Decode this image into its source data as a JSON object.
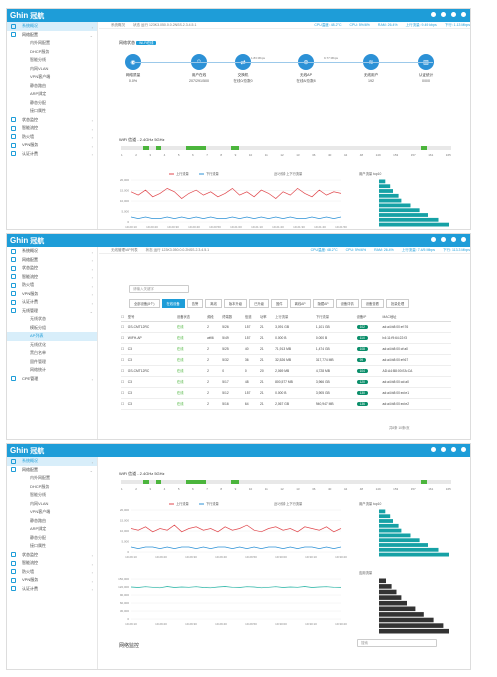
{
  "brand": {
    "logo": "Ghin",
    "logo_cn": "冠航"
  },
  "sidebar1": [
    {
      "label": "系统概况",
      "type": "top",
      "active": true
    },
    {
      "label": "网络配置",
      "type": "top",
      "icon": "network-icon",
      "open": true
    },
    {
      "label": "内外网配置",
      "type": "sub"
    },
    {
      "label": "DHCP服务",
      "type": "sub"
    },
    {
      "label": "智能分线",
      "type": "sub"
    },
    {
      "label": "内网VLAN",
      "type": "sub"
    },
    {
      "label": "VPN客户端",
      "type": "sub"
    },
    {
      "label": "静态路由",
      "type": "sub"
    },
    {
      "label": "ARP绑定",
      "type": "sub"
    },
    {
      "label": "静态分配",
      "type": "sub"
    },
    {
      "label": "接口属性",
      "type": "sub"
    },
    {
      "label": "状态监控",
      "type": "top",
      "icon": "monitor-icon"
    },
    {
      "label": "智能流控",
      "type": "top",
      "icon": "flow-icon"
    },
    {
      "label": "防火墙",
      "type": "top",
      "icon": "firewall-icon"
    },
    {
      "label": "VPN服务",
      "type": "top",
      "icon": "vpn-icon"
    },
    {
      "label": "认证计费",
      "type": "top",
      "icon": "auth-icon"
    }
  ],
  "sidebar2": [
    {
      "label": "系统概况",
      "type": "top"
    },
    {
      "label": "网络配置",
      "type": "top"
    },
    {
      "label": "状态监控",
      "type": "top"
    },
    {
      "label": "智能流控",
      "type": "top"
    },
    {
      "label": "防火墙",
      "type": "top"
    },
    {
      "label": "VPN服务",
      "type": "top"
    },
    {
      "label": "认证计费",
      "type": "top"
    },
    {
      "label": "无线管理",
      "type": "top",
      "open": true
    },
    {
      "label": "无线状态",
      "type": "sub"
    },
    {
      "label": "模板分组",
      "type": "sub"
    },
    {
      "label": "AP列表",
      "type": "sub",
      "active": true
    },
    {
      "label": "无线优化",
      "type": "sub"
    },
    {
      "label": "黑白名单",
      "type": "sub"
    },
    {
      "label": "固件管理",
      "type": "sub"
    },
    {
      "label": "网络统计",
      "type": "sub"
    },
    {
      "label": "CPE管理",
      "type": "top"
    }
  ],
  "sidebar3": [
    {
      "label": "系统概况",
      "type": "top",
      "active": true
    },
    {
      "label": "网络配置",
      "type": "top",
      "open": true
    },
    {
      "label": "内外网配置",
      "type": "sub"
    },
    {
      "label": "DHCP服务",
      "type": "sub"
    },
    {
      "label": "智能分线",
      "type": "sub"
    },
    {
      "label": "内网VLAN",
      "type": "sub"
    },
    {
      "label": "VPN客户端",
      "type": "sub"
    },
    {
      "label": "静态路由",
      "type": "sub"
    },
    {
      "label": "ARP绑定",
      "type": "sub"
    },
    {
      "label": "静态分配",
      "type": "sub"
    },
    {
      "label": "接口属性",
      "type": "sub"
    },
    {
      "label": "状态监控",
      "type": "top"
    },
    {
      "label": "智能流控",
      "type": "top"
    },
    {
      "label": "防火墙",
      "type": "top"
    },
    {
      "label": "VPN服务",
      "type": "top"
    },
    {
      "label": "认证计费",
      "type": "top"
    }
  ],
  "status1": {
    "path": "系统概况",
    "sys": "状态  运行 123K3.050.0.0.2NSS.2.3.4.5.1",
    "cpu": "CPU温度: 48.2°C",
    "cpu2": "CPU: 5%/6%",
    "mem": "RAM: 26.4%",
    "up": "上行流量: 9.49 kbps",
    "down": "下行: 1.13 Mbps"
  },
  "status2": {
    "path": "无线管理/AP列表",
    "sys": "状态  运行 123K3.050.0.0.2NSS.2.3.4.5.1",
    "cpu": "CPU温度: 48.2°C",
    "cpu2": "CPU: 5%/6%",
    "mem": "RAM: 26.4%",
    "up": "上行流量: 7.4/5 Mbps",
    "down": "下行: 113.3 Mbps"
  },
  "topo": {
    "title": "网络状态",
    "badge": "Wi-Fi在线",
    "nodes": [
      {
        "icon": "wan-icon",
        "label": "网络质量",
        "value": "0.0%"
      },
      {
        "icon": "users-icon",
        "label": "用户在线",
        "value": "207/291/500"
      },
      {
        "icon": "switch-icon",
        "label": "交换机",
        "value": "在线0/总数0"
      },
      {
        "icon": "ap-icon",
        "label": "无线AP",
        "value": "在线8/总数8"
      },
      {
        "icon": "wifi-icon",
        "label": "无线用户",
        "value": "192"
      },
      {
        "icon": "stats-icon",
        "label": "认证统计",
        "value": "0/0/0"
      }
    ],
    "speed1": "1.83 Mbps",
    "speed2": "9.77 Mbps"
  },
  "wifi": {
    "title": "WiFi 信道 - 2.4GHz  5GHz",
    "channels": [
      "1",
      "2",
      "3",
      "4",
      "5",
      "6",
      "7",
      "8",
      "9",
      "10",
      "11",
      "12",
      "13",
      "36",
      "40",
      "44",
      "48",
      "149",
      "153",
      "157",
      "161",
      "165"
    ]
  },
  "chart1": {
    "legend_up": "上行流量",
    "legend_down": "下行流量",
    "note": "近1分钟 上下行流量",
    "y_ticks": [
      "20,000",
      "15,000",
      "10,000",
      "5,000",
      "0"
    ],
    "x_ticks": [
      "19:20:10",
      "19:20:20",
      "19:20:30",
      "19:20:40",
      "19:20:50",
      "19:21:00",
      "19:21:10",
      "19:21:20",
      "19:21:30",
      "19:21:40",
      "19:21:50"
    ],
    "up": [
      18,
      16,
      19,
      15,
      17,
      20,
      18,
      14,
      17,
      19,
      16,
      18,
      15,
      17,
      20,
      16,
      18,
      15,
      19,
      17,
      14,
      18,
      16,
      20,
      17,
      15,
      19,
      16,
      18,
      17
    ],
    "down": [
      3,
      2,
      3,
      2,
      2,
      3,
      2,
      3,
      2,
      3,
      2,
      3,
      2,
      2,
      3,
      2,
      3,
      2,
      3,
      2,
      3,
      2,
      3,
      2,
      2,
      3,
      2,
      3,
      2,
      3
    ]
  },
  "bar1": {
    "title": "用户流量 top10",
    "values": [
      9,
      16,
      20,
      28,
      32,
      45,
      58,
      70,
      85,
      100
    ],
    "labels": [
      "1.8 GB",
      "1.9 GB",
      "2.0 GB",
      "2.4 GB",
      "3.1 GB",
      "4.2 GB",
      "5.0 GB",
      "6.3 GB",
      "8.1 GB",
      "9.5 GB"
    ]
  },
  "aplist": {
    "search": "请输入关键字",
    "tabs": [
      "全部设备(8个)",
      "在线设备",
      "告警",
      "离线",
      "版本升级",
      "已升级",
      "固件",
      "离线AP",
      "隐藏AP",
      "设备详情",
      "设备查看",
      "批量处理"
    ],
    "headers": [
      "型号",
      "设备状态",
      "频段",
      "终端数",
      "信道",
      "功率",
      "上行流量",
      "下行流量",
      "设备IP",
      "MAC地址"
    ],
    "rows": [
      {
        "name": "GS-CMT12RC",
        "status": "在线",
        "band": "2",
        "users": "5/26",
        "chan": "157",
        "power": "21",
        "up": "3,091 GB",
        "down": "1,101 GB",
        "ip": "102",
        "mac": "ad:a4:b8:00:ef:76"
      },
      {
        "name": "WIFH-AP",
        "status": "在线",
        "band": "wifi6",
        "users": "5/49",
        "chan": "157",
        "power": "21",
        "up": "0.000 B",
        "down": "0.000 B",
        "ip": "114",
        "mac": "b4:11:f9:64:22:f3"
      },
      {
        "name": "C3",
        "status": "在线",
        "band": "2",
        "users": "5/25",
        "chan": "40",
        "power": "21",
        "up": "71,913 MB",
        "down": "1,474 GB",
        "ip": "108",
        "mac": "ad:a4:b8:00:cf:a0"
      },
      {
        "name": "C3",
        "status": "在线",
        "band": "2",
        "users": "5/32",
        "chan": "36",
        "power": "21",
        "up": "32,526 MB",
        "down": "317,774 MB",
        "ip": "99",
        "mac": "ad:a4:b8:00:ef:67"
      },
      {
        "name": "GS-CMT12RC",
        "status": "在线",
        "band": "2",
        "users": "0",
        "chan": "0",
        "power": "20",
        "up": "2,069 MB",
        "down": "4,728 MB",
        "ip": "104",
        "mac": "AD:A4:B8:00:EA:CA"
      },
      {
        "name": "C3",
        "status": "在线",
        "band": "2",
        "users": "5/17",
        "chan": "48",
        "power": "21",
        "up": "800,577 MB",
        "down": "3,966 GB",
        "ip": "120",
        "mac": "ad:a4:b8:00:cd:a0"
      },
      {
        "name": "C3",
        "status": "在线",
        "band": "2",
        "users": "5/12",
        "chan": "157",
        "power": "21",
        "up": "0.000 B",
        "down": "3,905 GB",
        "ip": "130",
        "mac": "ad:a4:b8:00:ed:e1"
      },
      {
        "name": "C3",
        "status": "在线",
        "band": "2",
        "users": "5/16",
        "chan": "64",
        "power": "21",
        "up": "2,067 GB",
        "down": "940,947 MB",
        "ip": "136",
        "mac": "ad:a4:b8:00:ed:e2"
      }
    ],
    "pager": "共8条  10条/页"
  },
  "chart3": {
    "legend_up": "上行流量",
    "legend_down": "下行流量",
    "note": "近1分钟 上下行流量",
    "y_ticks": [
      "20,000",
      "15,000",
      "10,000",
      "5,000",
      "0"
    ],
    "x_ticks": [
      "19:29:10",
      "19:29:20",
      "19:29:30",
      "19:29:40",
      "19:29:50",
      "19:30:00",
      "19:30:10",
      "19:30:20"
    ],
    "up": [
      14,
      13,
      15,
      12,
      14,
      13,
      16,
      12,
      14,
      15,
      13,
      14,
      12,
      15,
      13,
      14,
      16,
      13,
      12,
      14,
      15,
      13,
      14,
      12,
      15,
      14,
      13,
      15,
      12,
      14
    ],
    "down": [
      3,
      2,
      3,
      3,
      2,
      3,
      2,
      3,
      3,
      2,
      3,
      2,
      3,
      3,
      2,
      3,
      2,
      3,
      2,
      3,
      3,
      2,
      3,
      2,
      3,
      3,
      2,
      3,
      2,
      3
    ],
    "conn_ticks": [
      "150,000",
      "120,000",
      "90,000",
      "60,000",
      "30,000",
      "0"
    ],
    "conn": [
      120,
      118,
      121,
      119,
      117,
      122,
      118,
      120,
      119,
      121,
      118,
      117,
      120,
      122,
      119,
      118,
      121,
      120,
      117,
      119,
      121,
      118,
      120,
      119,
      122,
      118,
      120,
      121,
      119,
      118
    ],
    "title2": "网络监控",
    "search": "搜索"
  },
  "bar3": {
    "title": "用户流量 top10",
    "values": [
      9,
      16,
      20,
      28,
      32,
      45,
      58,
      70,
      85,
      100
    ]
  },
  "bar4": {
    "title": "应用流量",
    "values": [
      10,
      18,
      25,
      32,
      40,
      52,
      64,
      78,
      92,
      100
    ]
  }
}
